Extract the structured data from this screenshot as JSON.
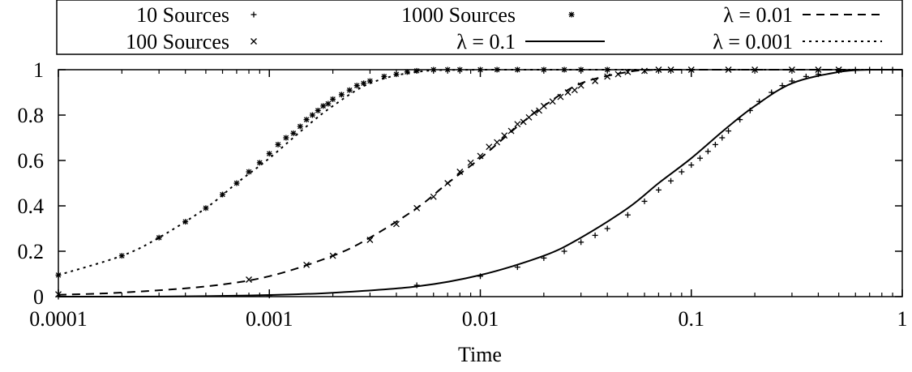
{
  "chart_data": {
    "type": "scatter",
    "title": "",
    "xlabel": "Time",
    "ylabel": "",
    "x_scale": "log",
    "xlim": [
      0.0001,
      1
    ],
    "ylim": [
      0,
      1
    ],
    "grid": false,
    "legend_position": "top",
    "x_ticks": [
      "0.0001",
      "0.001",
      "0.01",
      "0.1",
      "1"
    ],
    "y_ticks": [
      "0",
      "0.2",
      "0.4",
      "0.6",
      "0.8",
      "1"
    ],
    "legend": [
      {
        "label": "10 Sources",
        "marker": "plus"
      },
      {
        "label": "100 Sources",
        "marker": "cross"
      },
      {
        "label": "1000 Sources",
        "marker": "star"
      },
      {
        "label": "λ = 0.1",
        "line": "solid"
      },
      {
        "label": "λ = 0.01",
        "line": "dashed"
      },
      {
        "label": "λ = 0.001",
        "line": "dotted"
      }
    ],
    "series": [
      {
        "name": "λ = 0.1",
        "kind": "line",
        "dash": "solid",
        "x": [
          0.0001,
          0.0002,
          0.0005,
          0.001,
          0.002,
          0.005,
          0.01,
          0.02,
          0.03,
          0.05,
          0.07,
          0.1,
          0.15,
          0.2,
          0.3,
          0.5,
          0.7,
          1
        ],
        "y": [
          0.0,
          0.0,
          0.002,
          0.007,
          0.017,
          0.045,
          0.095,
          0.18,
          0.26,
          0.39,
          0.5,
          0.61,
          0.75,
          0.84,
          0.94,
          0.99,
          1.0,
          1.0
        ]
      },
      {
        "name": "λ = 0.01",
        "kind": "line",
        "dash": "dashed",
        "x": [
          0.0001,
          0.0002,
          0.0005,
          0.001,
          0.002,
          0.003,
          0.005,
          0.007,
          0.01,
          0.015,
          0.02,
          0.03,
          0.05,
          0.07,
          0.1,
          0.2,
          0.5,
          1
        ],
        "y": [
          0.008,
          0.018,
          0.045,
          0.09,
          0.18,
          0.26,
          0.39,
          0.5,
          0.61,
          0.75,
          0.84,
          0.94,
          0.99,
          1.0,
          1.0,
          1.0,
          1.0,
          1.0
        ]
      },
      {
        "name": "λ = 0.001",
        "kind": "line",
        "dash": "dotted",
        "x": [
          0.0001,
          0.0002,
          0.0003,
          0.0005,
          0.0007,
          0.001,
          0.0015,
          0.002,
          0.003,
          0.005,
          0.01,
          0.1,
          1
        ],
        "y": [
          0.095,
          0.18,
          0.26,
          0.39,
          0.5,
          0.61,
          0.75,
          0.84,
          0.94,
          0.99,
          1.0,
          1.0,
          1.0
        ]
      },
      {
        "name": "10 Sources",
        "kind": "points",
        "marker": "plus",
        "x": [
          0.0001,
          0.001,
          0.005,
          0.01,
          0.015,
          0.02,
          0.025,
          0.03,
          0.035,
          0.04,
          0.05,
          0.06,
          0.07,
          0.08,
          0.09,
          0.1,
          0.11,
          0.12,
          0.13,
          0.14,
          0.15,
          0.17,
          0.19,
          0.21,
          0.24,
          0.27,
          0.3,
          0.35,
          0.4,
          0.5,
          0.6,
          0.7,
          0.8,
          0.9
        ],
        "y": [
          0.0,
          0.005,
          0.05,
          0.09,
          0.13,
          0.17,
          0.2,
          0.24,
          0.27,
          0.3,
          0.36,
          0.42,
          0.47,
          0.51,
          0.55,
          0.58,
          0.61,
          0.64,
          0.67,
          0.7,
          0.73,
          0.78,
          0.82,
          0.86,
          0.9,
          0.93,
          0.95,
          0.97,
          0.98,
          0.995,
          1.0,
          1.0,
          1.0,
          1.0
        ]
      },
      {
        "name": "100 Sources",
        "kind": "points",
        "marker": "cross",
        "x": [
          0.0001,
          0.0008,
          0.0015,
          0.002,
          0.003,
          0.004,
          0.005,
          0.006,
          0.007,
          0.008,
          0.009,
          0.01,
          0.011,
          0.012,
          0.013,
          0.014,
          0.015,
          0.016,
          0.017,
          0.018,
          0.019,
          0.02,
          0.022,
          0.024,
          0.026,
          0.028,
          0.03,
          0.035,
          0.04,
          0.045,
          0.05,
          0.06,
          0.07,
          0.08,
          0.1,
          0.15,
          0.2,
          0.3,
          0.4,
          0.5
        ],
        "y": [
          0.01,
          0.075,
          0.14,
          0.18,
          0.25,
          0.32,
          0.39,
          0.44,
          0.5,
          0.55,
          0.59,
          0.62,
          0.66,
          0.68,
          0.71,
          0.73,
          0.76,
          0.77,
          0.79,
          0.81,
          0.82,
          0.84,
          0.86,
          0.88,
          0.9,
          0.91,
          0.93,
          0.95,
          0.97,
          0.98,
          0.99,
          0.995,
          1.0,
          1.0,
          1.0,
          1.0,
          1.0,
          1.0,
          1.0,
          1.0
        ]
      },
      {
        "name": "1000 Sources",
        "kind": "points",
        "marker": "star",
        "x": [
          0.0001,
          0.0002,
          0.0003,
          0.0004,
          0.0005,
          0.0006,
          0.0007,
          0.0008,
          0.0009,
          0.001,
          0.0011,
          0.0012,
          0.0013,
          0.0014,
          0.0015,
          0.0016,
          0.0017,
          0.0018,
          0.0019,
          0.002,
          0.0022,
          0.0024,
          0.0026,
          0.0028,
          0.003,
          0.0035,
          0.004,
          0.0045,
          0.005,
          0.006,
          0.007,
          0.008,
          0.01,
          0.012,
          0.015,
          0.02,
          0.025,
          0.03,
          0.04
        ],
        "y": [
          0.095,
          0.18,
          0.26,
          0.33,
          0.39,
          0.45,
          0.5,
          0.55,
          0.59,
          0.63,
          0.67,
          0.7,
          0.72,
          0.75,
          0.78,
          0.8,
          0.82,
          0.84,
          0.85,
          0.87,
          0.89,
          0.91,
          0.93,
          0.94,
          0.95,
          0.97,
          0.98,
          0.99,
          0.995,
          1.0,
          1.0,
          1.0,
          1.0,
          1.0,
          1.0,
          1.0,
          1.0,
          1.0,
          1.0
        ]
      }
    ]
  }
}
